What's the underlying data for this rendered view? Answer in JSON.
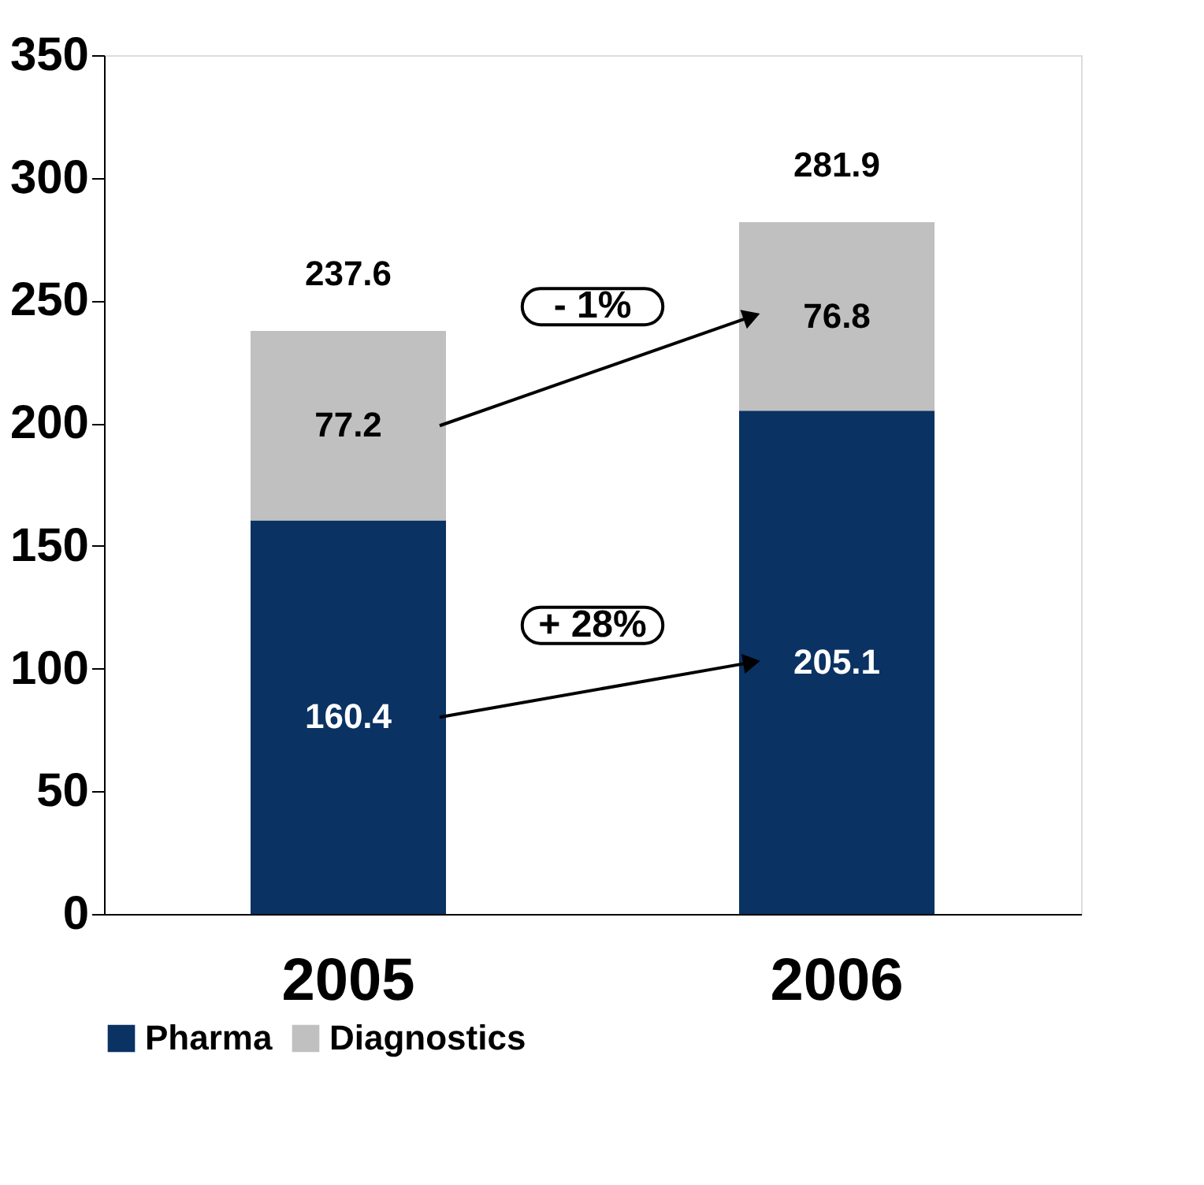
{
  "chart_data": {
    "type": "bar",
    "stacked": true,
    "categories": [
      "2005",
      "2006"
    ],
    "series": [
      {
        "name": "Pharma",
        "color": "#0a3263",
        "values": [
          160.4,
          205.1
        ]
      },
      {
        "name": "Diagnostics",
        "color": "#c0c0c0",
        "values": [
          77.2,
          76.8
        ]
      }
    ],
    "totals": [
      "237.6",
      "281.9"
    ],
    "data_labels": true,
    "annotations": [
      "+ 28%",
      "- 1%"
    ],
    "ylim": [
      0,
      350
    ],
    "yticks": [
      0,
      50,
      100,
      150,
      200,
      250,
      300,
      350
    ],
    "grid": false,
    "legend": "bottom"
  }
}
